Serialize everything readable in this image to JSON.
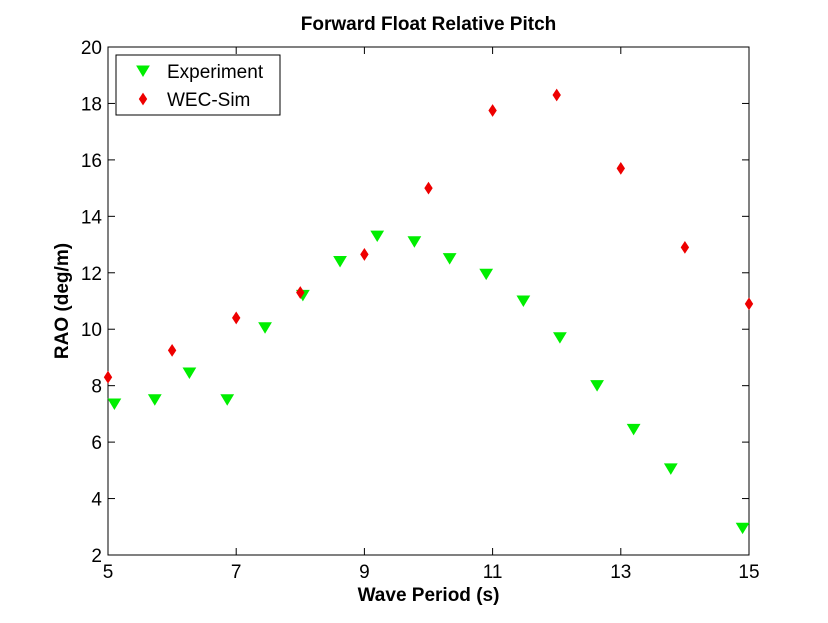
{
  "chart_data": {
    "type": "scatter",
    "title": "Forward Float Relative Pitch",
    "xlabel": "Wave Period (s)",
    "ylabel": "RAO (deg/m)",
    "xlim": [
      5,
      15
    ],
    "ylim": [
      2,
      20
    ],
    "xticks": [
      5,
      7,
      9,
      11,
      13,
      15
    ],
    "yticks": [
      2,
      4,
      6,
      8,
      10,
      12,
      14,
      16,
      18,
      20
    ],
    "grid": false,
    "legend_position": "top-left",
    "series": [
      {
        "name": "Experiment",
        "marker": "triangle-down",
        "color": "#00ee00",
        "x": [
          5.1,
          5.73,
          6.27,
          6.86,
          7.45,
          8.04,
          8.62,
          9.2,
          9.78,
          10.33,
          10.9,
          11.48,
          12.05,
          12.63,
          13.2,
          13.78,
          14.9
        ],
        "y": [
          7.35,
          7.5,
          8.45,
          7.5,
          10.05,
          11.2,
          12.4,
          13.3,
          13.1,
          12.5,
          11.95,
          11.0,
          9.7,
          8.0,
          6.45,
          5.05,
          2.95
        ]
      },
      {
        "name": "WEC-Sim",
        "marker": "diamond",
        "color": "#ee0000",
        "x": [
          5,
          6,
          7,
          8,
          9,
          10,
          11,
          12,
          13,
          14,
          15
        ],
        "y": [
          8.3,
          9.25,
          10.4,
          11.3,
          12.65,
          15.0,
          17.75,
          18.3,
          15.7,
          12.9,
          10.9
        ]
      }
    ]
  }
}
